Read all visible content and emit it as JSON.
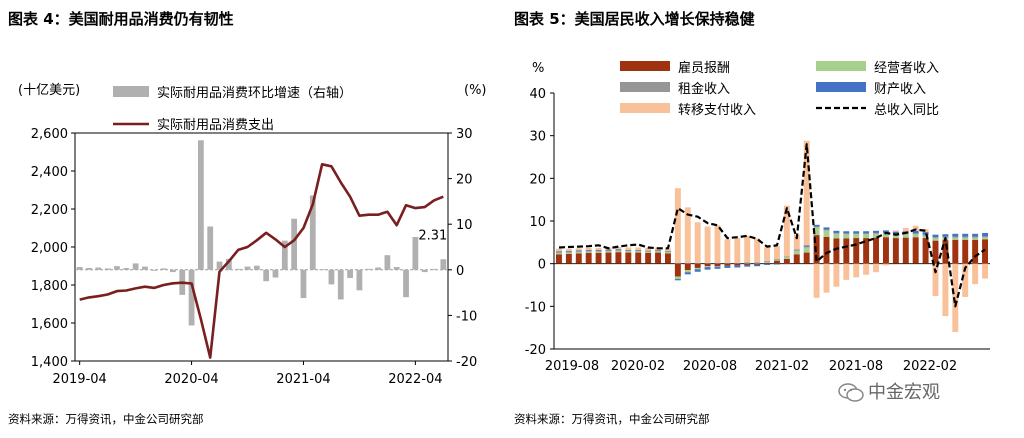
{
  "left": {
    "title": "图表 4：美国耐用品消费仍有韧性",
    "source": "资料来源：万得资讯，中金公司研究部",
    "colors": {
      "bar": "#b0b0b0",
      "line": "#7a1f1f"
    },
    "chart_data": {
      "type": "bar+line",
      "left_unit": "(十亿美元)",
      "right_unit": "(%)",
      "left_ylim": [
        1400,
        2600
      ],
      "left_yticks": [
        "1,400",
        "1,600",
        "1,800",
        "2,000",
        "2,200",
        "2,400",
        "2,600"
      ],
      "right_ylim": [
        -20,
        30
      ],
      "right_yticks": [
        "-20",
        "-10",
        "0",
        "10",
        "20",
        "30"
      ],
      "xticks": [
        "2019-04",
        "2020-04",
        "2021-04",
        "2022-04"
      ],
      "annotation": "2.31",
      "legend_position": "top",
      "grid": false,
      "bar_series": {
        "name": "实际耐用品消费环比增速（右轴）",
        "values": [
          0.6,
          0.4,
          0.5,
          0.3,
          0.8,
          0.4,
          1.4,
          0.7,
          -0.2,
          0.3,
          -0.5,
          -5.5,
          -12.2,
          28.4,
          9.5,
          1.8,
          2.4,
          0.2,
          0.7,
          0.9,
          -2.5,
          -1.7,
          6.4,
          11.2,
          -6.2,
          16.3,
          0.1,
          -3.2,
          -6.5,
          -1.8,
          -4.5,
          0.2,
          0.5,
          3.2,
          0.6,
          -6.0,
          7.2,
          -0.5,
          0.2,
          2.31
        ]
      },
      "line_series": {
        "name": "实际耐用品消费支出",
        "values": [
          1723,
          1735,
          1741,
          1750,
          1768,
          1771,
          1782,
          1791,
          1785,
          1800,
          1809,
          1812,
          1808,
          1620,
          1418,
          1870,
          1925,
          1985,
          2000,
          2035,
          2075,
          2040,
          2000,
          2035,
          2100,
          2225,
          2435,
          2425,
          2340,
          2265,
          2165,
          2170,
          2170,
          2185,
          2115,
          2220,
          2205,
          2210,
          2245,
          2265
        ]
      }
    }
  },
  "right": {
    "title": "图表 5：美国居民收入增长保持稳健",
    "source": "资料来源：万得资讯，中金公司研究部",
    "colors": {
      "wages": "#a0330f",
      "proprietor": "#a8d08d",
      "rent": "#969696",
      "property": "#4472c4",
      "transfer": "#f8c19a",
      "total": "#000000"
    },
    "chart_data": {
      "type": "stacked-bar+line",
      "unit": "%",
      "ylim": [
        -20,
        40
      ],
      "yticks": [
        "-20",
        "-10",
        "0",
        "10",
        "20",
        "30",
        "40"
      ],
      "xticks": [
        "2019-08",
        "2020-02",
        "2020-08",
        "2021-02",
        "2021-08",
        "2022-02"
      ],
      "legend_position": "top",
      "grid": false,
      "series": [
        {
          "name": "雇员报酬",
          "key": "wages",
          "values": [
            2.2,
            2.3,
            2.4,
            2.5,
            2.5,
            2.6,
            2.7,
            2.6,
            2.6,
            2.5,
            2.6,
            2.4,
            -3.0,
            -1.5,
            -1.0,
            -0.6,
            -0.6,
            -0.5,
            -0.4,
            -0.3,
            -0.2,
            0.2,
            0.7,
            1.1,
            2.2,
            2.6,
            6.7,
            6.3,
            5.9,
            5.9,
            6.0,
            6.0,
            6.1,
            6.2,
            6.0,
            6.1,
            6.2,
            6.0,
            5.4,
            5.5,
            5.6,
            5.6,
            5.6,
            5.7
          ]
        },
        {
          "name": "经营者收入",
          "key": "proprietor",
          "values": [
            0.3,
            0.3,
            0.3,
            0.3,
            0.3,
            0.3,
            0.3,
            0.3,
            0.3,
            0.3,
            0.3,
            0.3,
            -0.6,
            -0.5,
            -0.3,
            -0.2,
            -0.1,
            0.0,
            0.0,
            0.1,
            0.1,
            0.2,
            0.2,
            0.4,
            0.8,
            1.2,
            1.8,
            1.5,
            1.1,
            1.0,
            0.9,
            0.9,
            0.9,
            0.9,
            0.8,
            0.8,
            0.7,
            0.6,
            0.6,
            0.6,
            0.5,
            0.5,
            0.5,
            0.5
          ]
        },
        {
          "name": "租金收入",
          "key": "rent",
          "values": [
            0.2,
            0.2,
            0.2,
            0.2,
            0.2,
            0.2,
            0.2,
            0.2,
            0.2,
            0.2,
            0.2,
            0.2,
            0.2,
            0.2,
            0.2,
            0.2,
            0.2,
            0.2,
            0.2,
            0.2,
            0.2,
            0.2,
            0.2,
            0.2,
            0.2,
            0.2,
            0.2,
            0.2,
            0.2,
            0.2,
            0.2,
            0.2,
            0.2,
            0.2,
            0.2,
            0.2,
            0.2,
            0.2,
            0.2,
            0.2,
            0.2,
            0.2,
            0.2,
            0.2
          ]
        },
        {
          "name": "财产收入",
          "key": "property",
          "values": [
            0.2,
            0.2,
            0.2,
            0.2,
            0.2,
            0.2,
            0.2,
            0.1,
            0.1,
            0.1,
            0.1,
            0.1,
            -0.3,
            -0.5,
            -0.6,
            -0.6,
            -0.5,
            -0.5,
            -0.5,
            -0.4,
            -0.4,
            -0.3,
            -0.2,
            -0.1,
            0.1,
            0.3,
            0.4,
            0.5,
            0.5,
            0.5,
            0.5,
            0.5,
            0.5,
            0.5,
            0.5,
            0.5,
            0.6,
            0.6,
            0.6,
            0.6,
            0.7,
            0.7,
            0.7,
            0.8
          ]
        },
        {
          "name": "转移支付收入",
          "key": "transfer",
          "values": [
            0.6,
            0.5,
            0.5,
            0.5,
            0.5,
            0.5,
            0.5,
            0.6,
            0.6,
            0.6,
            0.6,
            0.6,
            17.5,
            13.0,
            9.5,
            8.5,
            8.8,
            5.5,
            5.8,
            6.2,
            5.6,
            3.2,
            3.0,
            11.9,
            3.5,
            24.5,
            -8.0,
            -6.8,
            -5.4,
            -3.8,
            -3.2,
            -2.6,
            -2.0,
            -0.4,
            0.3,
            0.8,
            1.2,
            0.7,
            -7.6,
            -12.3,
            -16.0,
            -7.8,
            -4.8,
            -3.5
          ]
        },
        {
          "name": "总收入同比",
          "key": "total",
          "type": "line",
          "values": [
            3.8,
            3.9,
            4.0,
            4.1,
            4.3,
            3.6,
            4.0,
            4.3,
            4.5,
            3.8,
            3.6,
            3.6,
            13.0,
            11.5,
            11.0,
            9.5,
            9.0,
            6.0,
            6.2,
            6.5,
            5.8,
            4.0,
            4.3,
            13.0,
            6.0,
            28.0,
            0.5,
            2.5,
            3.5,
            4.0,
            4.5,
            5.3,
            6.0,
            7.2,
            6.8,
            7.2,
            8.0,
            7.7,
            -2.0,
            6.0,
            -10.0,
            -1.0,
            1.7,
            3.3
          ]
        }
      ]
    }
  },
  "watermark": "中金宏观"
}
